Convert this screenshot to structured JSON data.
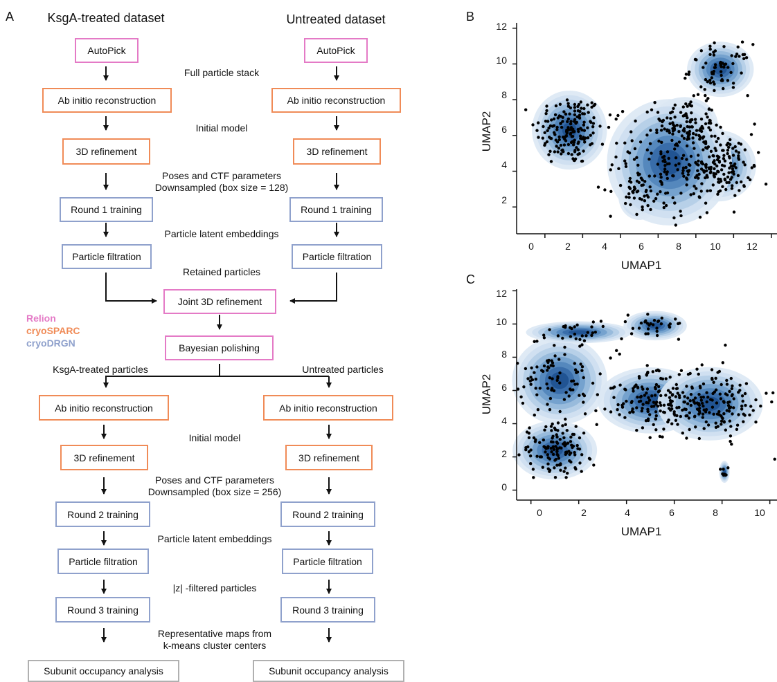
{
  "panels": {
    "a": "A",
    "b": "B",
    "c": "C"
  },
  "headers": {
    "left": "KsgA-treated dataset",
    "right": "Untreated dataset"
  },
  "boxes": {
    "autopick": "AutoPick",
    "ab_initio": "Ab initio reconstruction",
    "refine3d": "3D refinement",
    "round1": "Round 1 training",
    "filtration": "Particle filtration",
    "joint": "Joint 3D refinement",
    "polish": "Bayesian polishing",
    "round2": "Round 2 training",
    "round3": "Round 3 training",
    "occupancy": "Subunit occupancy analysis"
  },
  "labels": {
    "full_stack": "Full particle stack",
    "initial_model": "Initial model",
    "poses1": "Poses and CTF parameters",
    "down128": "Downsampled (box size = 128)",
    "latent1": "Particle latent embeddings",
    "retained": "Retained particles",
    "ksga_particles": "KsgA-treated particles",
    "untreated_particles": "Untreated particles",
    "initial_model2": "Initial model",
    "poses2": "Poses and CTF parameters",
    "down256": "Downsampled (box size = 256)",
    "latent2": "Particle latent embeddings",
    "zfiltered": "|z| -filtered particles",
    "rep_maps": "Representative maps from",
    "kmeans": "k-means cluster centers"
  },
  "legend": [
    {
      "name": "Relion",
      "color": "#e47ac6"
    },
    {
      "name": "cryoSPARC",
      "color": "#f08b57"
    },
    {
      "name": "cryoDRGN",
      "color": "#8fa1cc"
    }
  ],
  "plot_b": {
    "xlabel": "UMAP1",
    "ylabel": "UMAP2",
    "xticks": [
      "0",
      "2",
      "4",
      "6",
      "8",
      "10",
      "12"
    ],
    "yticks": [
      "2",
      "4",
      "6",
      "8",
      "10",
      "12"
    ]
  },
  "plot_c": {
    "xlabel": "UMAP1",
    "ylabel": "UMAP2",
    "xticks": [
      "0",
      "2",
      "4",
      "6",
      "8",
      "10"
    ],
    "yticks": [
      "0",
      "2",
      "4",
      "6",
      "8",
      "10",
      "12"
    ]
  },
  "chart_data": [
    {
      "type": "scatter",
      "panel": "B",
      "xlabel": "UMAP1",
      "ylabel": "UMAP2",
      "xlim": [
        -1.5,
        12.3
      ],
      "ylim": [
        0.5,
        12.3
      ],
      "xticks": [
        0,
        2,
        4,
        6,
        8,
        10,
        12
      ],
      "yticks": [
        2,
        4,
        6,
        8,
        10,
        12
      ],
      "clusters": [
        {
          "center": [
            1.3,
            6.3
          ],
          "spread": [
            0.9,
            1.0
          ],
          "n": 170
        },
        {
          "center": [
            7.4,
            6.6
          ],
          "spread": [
            0.8,
            0.7
          ],
          "n": 90
        },
        {
          "center": [
            9.2,
            4.3
          ],
          "spread": [
            0.9,
            0.9
          ],
          "n": 150
        },
        {
          "center": [
            9.3,
            9.7
          ],
          "spread": [
            0.8,
            0.7
          ],
          "n": 70
        },
        {
          "center": [
            5.0,
            2.6
          ],
          "spread": [
            0.5,
            0.6
          ],
          "n": 30
        },
        {
          "center": [
            6.6,
            4.5
          ],
          "spread": [
            1.5,
            1.6
          ],
          "n": 160
        }
      ]
    },
    {
      "type": "scatter",
      "panel": "C",
      "xlabel": "UMAP1",
      "ylabel": "UMAP2",
      "xlim": [
        -0.6,
        10.3
      ],
      "ylim": [
        -0.6,
        12.1
      ],
      "xticks": [
        0,
        2,
        4,
        6,
        8,
        10
      ],
      "yticks": [
        0,
        2,
        4,
        6,
        8,
        10,
        12
      ],
      "clusters": [
        {
          "center": [
            1.0,
            2.4
          ],
          "spread": [
            0.8,
            0.8
          ],
          "n": 130
        },
        {
          "center": [
            5.0,
            5.4
          ],
          "spread": [
            1.0,
            0.9
          ],
          "n": 130
        },
        {
          "center": [
            7.5,
            5.2
          ],
          "spread": [
            1.0,
            1.0
          ],
          "n": 170
        },
        {
          "center": [
            1.2,
            6.6
          ],
          "spread": [
            0.9,
            1.2
          ],
          "n": 90
        },
        {
          "center": [
            5.2,
            9.9
          ],
          "spread": [
            0.6,
            0.4
          ],
          "n": 30
        },
        {
          "center": [
            2.0,
            9.5
          ],
          "spread": [
            1.0,
            0.3
          ],
          "n": 30
        },
        {
          "center": [
            8.1,
            1.1
          ],
          "spread": [
            0.1,
            0.3
          ],
          "n": 8
        }
      ]
    }
  ]
}
